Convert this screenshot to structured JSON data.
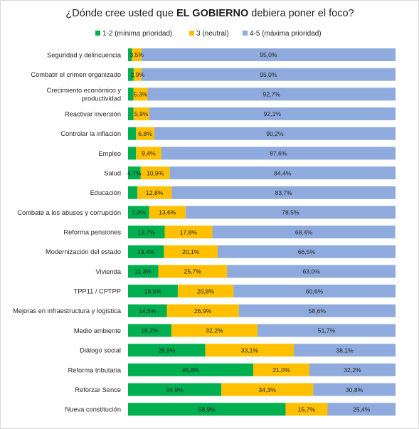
{
  "chart_data": {
    "type": "bar",
    "orientation": "horizontal",
    "stacked": true,
    "title_prefix": "¿Dónde cree usted que ",
    "title_bold": "EL GOBIERNO",
    "title_suffix": " debiera poner el foco?",
    "legend_position": "top",
    "grid": false,
    "xlim": [
      0,
      100
    ],
    "categories": [
      "Seguridad y delincuencia",
      "Combatir el crimen organizado",
      "Crecimiento económico y productividad",
      "Reactivar inversión",
      "Controlar la inflación",
      "Empleo",
      "Salud",
      "Educación",
      "Combate a los abusos y corrupción",
      "Reforma pensiones",
      "Modernización del estado",
      "Vivienda",
      "TPP11 / CPTPP",
      "Mejoras en infraestructura y logística",
      "Medio ambiente",
      "Diálogo social",
      "Reforma tributaria",
      "Reforzar Sence",
      "Nueva constitución"
    ],
    "category_lines": [
      [
        "Seguridad y delincuencia"
      ],
      [
        "Combatir el crimen organizado"
      ],
      [
        "Crecimiento económico y",
        "productividad"
      ],
      [
        "Reactivar inversión"
      ],
      [
        "Controlar la inflación"
      ],
      [
        "Empleo"
      ],
      [
        "Salud"
      ],
      [
        "Educación"
      ],
      [
        "Combate a los abusos y corrupción"
      ],
      [
        "Reforma pensiones"
      ],
      [
        "Modernización del estado"
      ],
      [
        "Vivienda"
      ],
      [
        "TPP11 / CPTPP"
      ],
      [
        "Mejoras en infraestructura y logística"
      ],
      [
        "Medio ambiente"
      ],
      [
        "Diálogo social"
      ],
      [
        "Reforma tributaria"
      ],
      [
        "Reforzar Sence"
      ],
      [
        "Nueva constitución"
      ]
    ],
    "series": [
      {
        "name": "1-2 (mínima prioridad)",
        "color": "#00b050",
        "values": [
          1.5,
          2.1,
          2.0,
          2.0,
          3.0,
          3.0,
          4.7,
          3.5,
          7.9,
          13.7,
          13.4,
          11.3,
          18.6,
          14.5,
          16.2,
          28.9,
          46.8,
          34.9,
          58.9
        ],
        "labels": [
          "",
          "",
          "",
          "",
          "",
          "",
          "4,7%",
          "",
          "7,9%",
          "13,7%",
          "13,4%",
          "11,3%",
          "18,6%",
          "14,5%",
          "16,2%",
          "28,9%",
          "46,8%",
          "34,9%",
          "58,9%"
        ]
      },
      {
        "name": "3 (neutral)",
        "color": "#ffc000",
        "values": [
          3.5,
          2.9,
          5.3,
          5.9,
          6.8,
          9.4,
          10.9,
          12.8,
          13.6,
          17.8,
          20.1,
          25.7,
          20.8,
          26.9,
          32.2,
          33.1,
          21.0,
          34.3,
          15.7
        ],
        "labels": [
          "3,5%",
          "2,9%",
          "5,3%",
          "5,9%",
          "6,8%",
          "9,4%",
          "10,9%",
          "12,8%",
          "13,6%",
          "17,8%",
          "20,1%",
          "25,7%",
          "20,8%",
          "26,9%",
          "32,2%",
          "33,1%",
          "21,0%",
          "34,3%",
          "15,7%"
        ]
      },
      {
        "name": "4-5 (máxima prioridad)",
        "color": "#8faadc",
        "values": [
          95.0,
          95.0,
          92.7,
          92.1,
          90.2,
          87.6,
          84.4,
          83.7,
          78.5,
          68.4,
          66.5,
          63.0,
          60.6,
          58.6,
          51.7,
          38.1,
          32.2,
          30.8,
          25.4
        ],
        "labels": [
          "95,0%",
          "95,0%",
          "92,7%",
          "92,1%",
          "90,2%",
          "87,6%",
          "84,4%",
          "83,7%",
          "78,5%",
          "68,4%",
          "66,5%",
          "63,0%",
          "60,6%",
          "58,6%",
          "51,7%",
          "38,1%",
          "32,2%",
          "30,8%",
          "25,4%"
        ]
      }
    ]
  }
}
